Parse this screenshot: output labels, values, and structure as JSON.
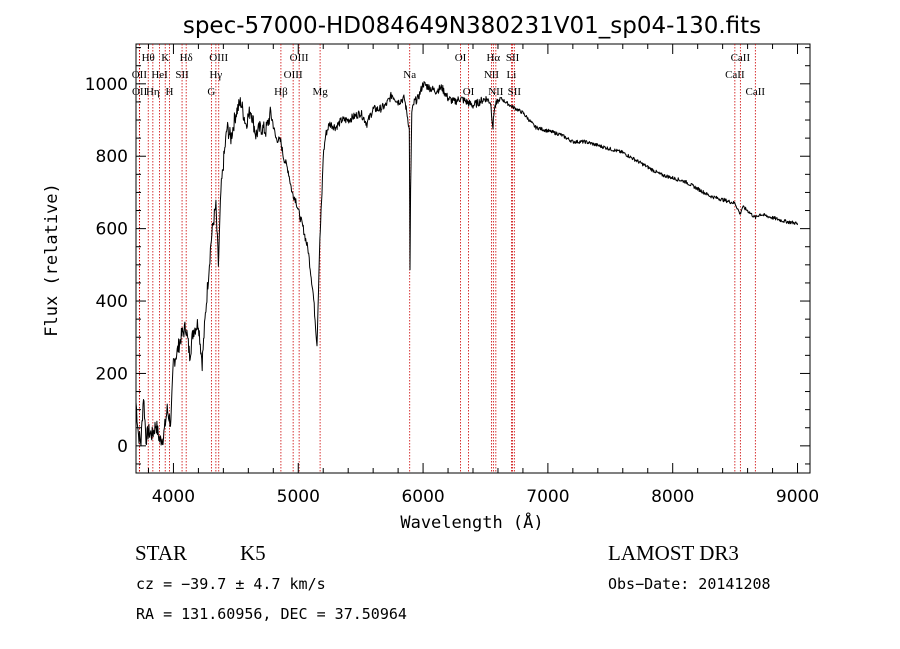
{
  "chart_data": {
    "type": "line",
    "title": "spec-57000-HD084649N380231V01_sp04-130.fits",
    "xlabel": "Wavelength (Å)",
    "ylabel": "Flux (relative)",
    "xlim": [
      3700,
      9100
    ],
    "ylim": [
      -75,
      1110
    ],
    "x_ticks": [
      4000,
      5000,
      6000,
      7000,
      8000,
      9000
    ],
    "y_ticks": [
      0,
      200,
      400,
      600,
      800,
      1000
    ],
    "series": [
      {
        "name": "flux",
        "color": "#000000",
        "x": [
          3700,
          3720,
          3740,
          3760,
          3780,
          3800,
          3830,
          3860,
          3890,
          3920,
          3950,
          3980,
          4000,
          4030,
          4060,
          4100,
          4130,
          4160,
          4200,
          4230,
          4260,
          4300,
          4320,
          4340,
          4360,
          4380,
          4400,
          4430,
          4460,
          4500,
          4540,
          4580,
          4620,
          4660,
          4700,
          4740,
          4780,
          4820,
          4860,
          4880,
          4900,
          4920,
          4950,
          4980,
          5000,
          5040,
          5080,
          5120,
          5150,
          5170,
          5180,
          5190,
          5200,
          5220,
          5250,
          5300,
          5350,
          5400,
          5450,
          5500,
          5550,
          5600,
          5650,
          5700,
          5750,
          5800,
          5850,
          5880,
          5890,
          5895,
          5900,
          5910,
          5930,
          5960,
          6000,
          6050,
          6100,
          6150,
          6200,
          6250,
          6300,
          6350,
          6400,
          6450,
          6500,
          6540,
          6560,
          6570,
          6580,
          6620,
          6700,
          6800,
          6900,
          7000,
          7100,
          7200,
          7300,
          7400,
          7500,
          7600,
          7700,
          7800,
          7900,
          8000,
          8100,
          8200,
          8300,
          8400,
          8500,
          8540,
          8560,
          8600,
          8660,
          8700,
          8800,
          8900,
          8990,
          9000
        ],
        "values": [
          120,
          30,
          10,
          140,
          20,
          40,
          30,
          60,
          15,
          25,
          100,
          60,
          230,
          260,
          300,
          330,
          250,
          320,
          340,
          230,
          380,
          560,
          620,
          660,
          500,
          700,
          780,
          880,
          850,
          920,
          950,
          890,
          930,
          860,
          880,
          870,
          920,
          850,
          840,
          800,
          780,
          760,
          700,
          680,
          650,
          600,
          540,
          420,
          280,
          540,
          620,
          700,
          800,
          860,
          890,
          880,
          900,
          900,
          910,
          920,
          890,
          930,
          930,
          940,
          970,
          950,
          960,
          900,
          870,
          480,
          700,
          920,
          950,
          960,
          1000,
          990,
          980,
          990,
          960,
          950,
          960,
          950,
          940,
          950,
          960,
          950,
          880,
          930,
          940,
          960,
          940,
          920,
          880,
          870,
          860,
          840,
          840,
          830,
          820,
          810,
          790,
          770,
          750,
          740,
          730,
          710,
          690,
          680,
          670,
          640,
          660,
          650,
          630,
          640,
          630,
          620,
          615,
          610
        ]
      }
    ],
    "spectral_lines": [
      {
        "label": "Hθ",
        "wavelength": 3798,
        "row": 1
      },
      {
        "label": "OII",
        "wavelength": 3727,
        "row": 2
      },
      {
        "label": "OII",
        "wavelength": 3729,
        "row": 3
      },
      {
        "label": "K",
        "wavelength": 3934,
        "row": 1
      },
      {
        "label": "HeI",
        "wavelength": 3889,
        "row": 2
      },
      {
        "label": "Hη",
        "wavelength": 3835,
        "row": 3
      },
      {
        "label": "H",
        "wavelength": 3968,
        "row": 3
      },
      {
        "label": "Hδ",
        "wavelength": 4102,
        "row": 1
      },
      {
        "label": "SII",
        "wavelength": 4069,
        "row": 2
      },
      {
        "label": "OIII",
        "wavelength": 4363,
        "row": 1
      },
      {
        "label": "Hγ",
        "wavelength": 4340,
        "row": 2
      },
      {
        "label": "G",
        "wavelength": 4304,
        "row": 3
      },
      {
        "label": "OIII",
        "wavelength": 5007,
        "row": 1
      },
      {
        "label": "OIII",
        "wavelength": 4959,
        "row": 2
      },
      {
        "label": "Hβ",
        "wavelength": 4861,
        "row": 3
      },
      {
        "label": "Mg",
        "wavelength": 5175,
        "row": 3
      },
      {
        "label": "Na",
        "wavelength": 5893,
        "row": 2
      },
      {
        "label": "OI",
        "wavelength": 6300,
        "row": 1
      },
      {
        "label": "OI",
        "wavelength": 6364,
        "row": 3
      },
      {
        "label": "Hα",
        "wavelength": 6563,
        "row": 1
      },
      {
        "label": "SII",
        "wavelength": 6717,
        "row": 1
      },
      {
        "label": "NII",
        "wavelength": 6548,
        "row": 2
      },
      {
        "label": "Li",
        "wavelength": 6708,
        "row": 2
      },
      {
        "label": "NII",
        "wavelength": 6583,
        "row": 3
      },
      {
        "label": "SII",
        "wavelength": 6731,
        "row": 3
      },
      {
        "label": "CaII",
        "wavelength": 8542,
        "row": 1
      },
      {
        "label": "CaII",
        "wavelength": 8498,
        "row": 2
      },
      {
        "label": "CaII",
        "wavelength": 8662,
        "row": 3
      }
    ],
    "grid": false
  },
  "info": {
    "class_label": "STAR",
    "subclass": "K5",
    "redshift": "cz = −39.7 ± 4.7 km/s",
    "coords": "RA = 131.60956, DEC =  37.50964",
    "survey": "LAMOST DR3",
    "obs_date": "Obs−Date: 20141208"
  },
  "colors": {
    "line_marker": "#cc0000",
    "spectrum": "#000000",
    "axes": "#000000"
  }
}
